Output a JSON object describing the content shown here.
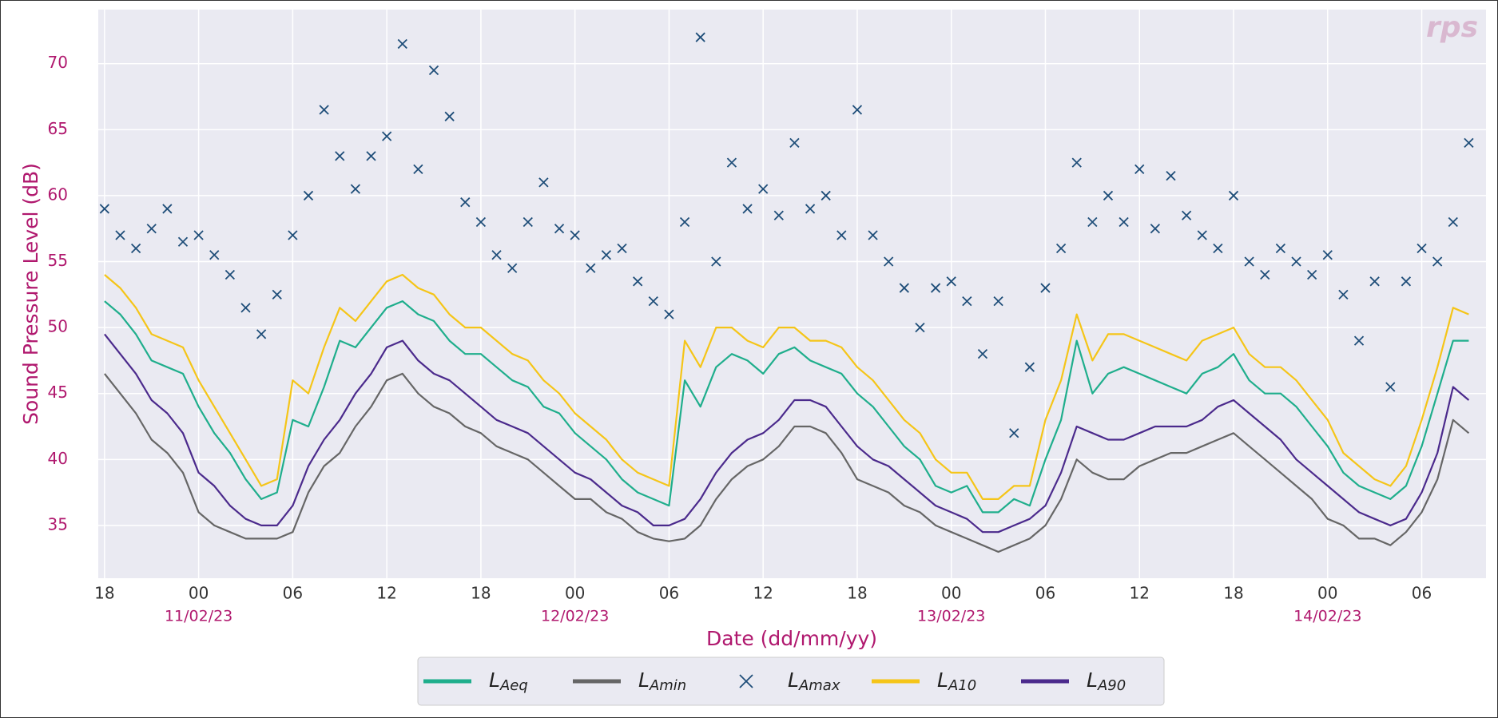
{
  "chart_data": {
    "type": "line",
    "xlabel": "Date (dd/mm/yy)",
    "ylabel": "Sound Pressure Level (dB)",
    "logo": "rps",
    "x": [
      18,
      19,
      20,
      21,
      22,
      23,
      24,
      25,
      26,
      27,
      28,
      29,
      30,
      31,
      32,
      33,
      34,
      35,
      36,
      37,
      38,
      39,
      40,
      41,
      42,
      43,
      44,
      45,
      46,
      47,
      48,
      49,
      50,
      51,
      52,
      53,
      54,
      55,
      56,
      57,
      58,
      59,
      60,
      61,
      62,
      63,
      64,
      65,
      66,
      67,
      68,
      69,
      70,
      71,
      72,
      73,
      74,
      75,
      76,
      77,
      78,
      79,
      80,
      81,
      82,
      83,
      84,
      85,
      86,
      87,
      88,
      89,
      90,
      91,
      92,
      93,
      94,
      95,
      96,
      97,
      98,
      99,
      100,
      101,
      102,
      103,
      104,
      105
    ],
    "xlim": [
      17.6,
      106.1
    ],
    "xticks": [
      {
        "value": 18,
        "label": "18"
      },
      {
        "value": 24,
        "label": "00"
      },
      {
        "value": 30,
        "label": "06"
      },
      {
        "value": 36,
        "label": "12"
      },
      {
        "value": 42,
        "label": "18"
      },
      {
        "value": 48,
        "label": "00"
      },
      {
        "value": 54,
        "label": "06"
      },
      {
        "value": 60,
        "label": "12"
      },
      {
        "value": 66,
        "label": "18"
      },
      {
        "value": 72,
        "label": "00"
      },
      {
        "value": 78,
        "label": "06"
      },
      {
        "value": 84,
        "label": "12"
      },
      {
        "value": 90,
        "label": "18"
      },
      {
        "value": 96,
        "label": "00"
      },
      {
        "value": 102,
        "label": "06"
      }
    ],
    "date_ticks": [
      {
        "value": 24,
        "label": "11/02/23"
      },
      {
        "value": 48,
        "label": "12/02/23"
      },
      {
        "value": 72,
        "label": "13/02/23"
      },
      {
        "value": 96,
        "label": "14/02/23"
      }
    ],
    "ylim": [
      31,
      74.1
    ],
    "yticks": [
      35,
      40,
      45,
      50,
      55,
      60,
      65,
      70
    ],
    "grid": true,
    "series": [
      {
        "name": "LAeq",
        "color": "#1fae8c",
        "marker": "none",
        "values": [
          52,
          51,
          49.5,
          47.5,
          47,
          46.5,
          44,
          42,
          40.5,
          38.5,
          37,
          37.5,
          43,
          42.5,
          45.5,
          49,
          48.5,
          50,
          51.5,
          52,
          51,
          50.5,
          49,
          48,
          48,
          47,
          46,
          45.5,
          44,
          43.5,
          42,
          41,
          40,
          38.5,
          37.5,
          37,
          36.5,
          46,
          44,
          47,
          48,
          47.5,
          46.5,
          48,
          48.5,
          47.5,
          47,
          46.5,
          45,
          44,
          42.5,
          41,
          40,
          38,
          37.5,
          38,
          36,
          36,
          37,
          36.5,
          40,
          43,
          49,
          45,
          46.5,
          47,
          46.5,
          46,
          45.5,
          45,
          46.5,
          47,
          48,
          46,
          45,
          45,
          44,
          42.5,
          41,
          39,
          38,
          37.5,
          37,
          38,
          41,
          45,
          49,
          49
        ]
      },
      {
        "name": "LAmin",
        "color": "#666666",
        "marker": "none",
        "values": [
          46.5,
          45,
          43.5,
          41.5,
          40.5,
          39,
          36,
          35,
          34.5,
          34,
          34,
          34,
          34.5,
          37.5,
          39.5,
          40.5,
          42.5,
          44,
          46,
          46.5,
          45,
          44,
          43.5,
          42.5,
          42,
          41,
          40.5,
          40,
          39,
          38,
          37,
          37,
          36,
          35.5,
          34.5,
          34,
          33.8,
          34,
          35,
          37,
          38.5,
          39.5,
          40,
          41,
          42.5,
          42.5,
          42,
          40.5,
          38.5,
          38,
          37.5,
          36.5,
          36,
          35,
          34.5,
          34,
          33.5,
          33,
          33.5,
          34,
          35,
          37,
          40,
          39,
          38.5,
          38.5,
          39.5,
          40,
          40.5,
          40.5,
          41,
          41.5,
          42,
          41,
          40,
          39,
          38,
          37,
          35.5,
          35,
          34,
          34,
          33.5,
          34.5,
          36,
          38.5,
          43,
          42
        ]
      },
      {
        "name": "LAmax",
        "color": "#1f4e79",
        "marker": "x",
        "values": [
          59,
          57,
          56,
          57.5,
          59,
          56.5,
          57,
          55.5,
          54,
          51.5,
          49.5,
          52.5,
          57,
          60,
          66.5,
          63,
          60.5,
          63,
          64.5,
          71.5,
          62,
          69.5,
          66,
          59.5,
          58,
          55.5,
          54.5,
          58,
          61,
          57.5,
          57,
          54.5,
          55.5,
          56,
          53.5,
          52,
          51,
          58,
          72,
          55,
          62.5,
          59,
          60.5,
          58.5,
          64,
          59,
          60,
          57,
          66.5,
          57,
          55,
          53,
          50,
          53,
          53.5,
          52,
          48,
          52,
          42,
          47,
          53,
          56,
          62.5,
          58,
          60,
          58,
          62,
          57.5,
          61.5,
          58.5,
          57,
          56,
          60,
          55,
          54,
          56,
          55,
          54,
          55.5,
          52.5,
          49,
          53.5,
          45.5,
          53.5,
          56,
          55,
          58,
          64
        ]
      },
      {
        "name": "LA10",
        "color": "#f5c518",
        "marker": "none",
        "values": [
          54,
          53,
          51.5,
          49.5,
          49,
          48.5,
          46,
          44,
          42,
          40,
          38,
          38.5,
          46,
          45,
          48.5,
          51.5,
          50.5,
          52,
          53.5,
          54,
          53,
          52.5,
          51,
          50,
          50,
          49,
          48,
          47.5,
          46,
          45,
          43.5,
          42.5,
          41.5,
          40,
          39,
          38.5,
          38,
          49,
          47,
          50,
          50,
          49,
          48.5,
          50,
          50,
          49,
          49,
          48.5,
          47,
          46,
          44.5,
          43,
          42,
          40,
          39,
          39,
          37,
          37,
          38,
          38,
          43,
          46,
          51,
          47.5,
          49.5,
          49.5,
          49,
          48.5,
          48,
          47.5,
          49,
          49.5,
          50,
          48,
          47,
          47,
          46,
          44.5,
          43,
          40.5,
          39.5,
          38.5,
          38,
          39.5,
          43,
          47,
          51.5,
          51
        ]
      },
      {
        "name": "LA90",
        "color": "#4b2a8c",
        "marker": "none",
        "values": [
          49.5,
          48,
          46.5,
          44.5,
          43.5,
          42,
          39,
          38,
          36.5,
          35.5,
          35,
          35,
          36.5,
          39.5,
          41.5,
          43,
          45,
          46.5,
          48.5,
          49,
          47.5,
          46.5,
          46,
          45,
          44,
          43,
          42.5,
          42,
          41,
          40,
          39,
          38.5,
          37.5,
          36.5,
          36,
          35,
          35,
          35.5,
          37,
          39,
          40.5,
          41.5,
          42,
          43,
          44.5,
          44.5,
          44,
          42.5,
          41,
          40,
          39.5,
          38.5,
          37.5,
          36.5,
          36,
          35.5,
          34.5,
          34.5,
          35,
          35.5,
          36.5,
          39,
          42.5,
          42,
          41.5,
          41.5,
          42,
          42.5,
          42.5,
          42.5,
          43,
          44,
          44.5,
          43.5,
          42.5,
          41.5,
          40,
          39,
          38,
          37,
          36,
          35.5,
          35,
          35.5,
          37.5,
          40.5,
          45.5,
          44.5
        ]
      }
    ]
  }
}
